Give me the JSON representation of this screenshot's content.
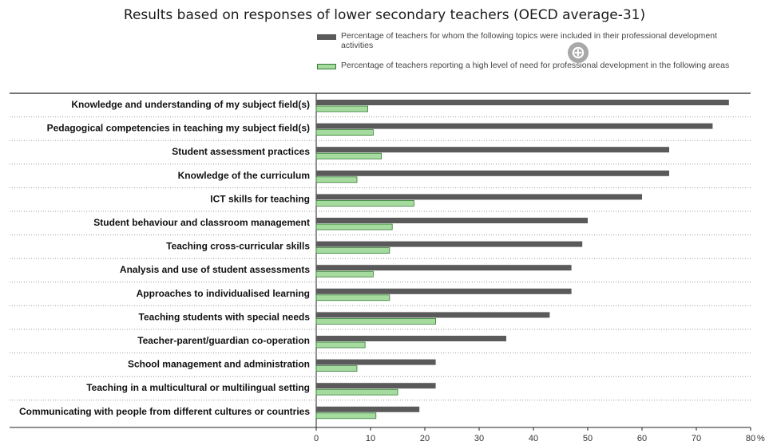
{
  "title": "Results based on responses of lower secondary teachers (OECD average-31)",
  "legend": [
    {
      "label": "Percentage of teachers for whom the following topics were included in their professional development activities",
      "color": "#5a5a5a"
    },
    {
      "label": "Percentage of teachers reporting a high level of need for professional development in the following areas",
      "color": "#a6dba0"
    }
  ],
  "zoom_icon": "zoom-in-icon",
  "chart_data": {
    "type": "bar",
    "orientation": "horizontal",
    "categories": [
      "Knowledge and understanding of my subject field(s)",
      "Pedagogical competencies in teaching my subject field(s)",
      "Student assessment practices",
      "Knowledge of the curriculum",
      "ICT skills for teaching",
      "Student behaviour and classroom management",
      "Teaching cross-curricular skills",
      "Analysis and use of student assessments",
      "Approaches to individualised learning",
      "Teaching students with special needs",
      "Teacher-parent/guardian co-operation",
      "School management and administration",
      "Teaching in a multicultural or multilingual setting",
      "Communicating with people from different cultures or countries"
    ],
    "series": [
      {
        "name": "Percentage of teachers for whom the following topics were included in their professional development activities",
        "color": "#5a5a5a",
        "values": [
          76,
          73,
          65,
          65,
          60,
          50,
          49,
          47,
          47,
          43,
          35,
          22,
          22,
          19
        ]
      },
      {
        "name": "Percentage of teachers reporting a high level of need for professional development in the following areas",
        "color": "#a6dba0",
        "values": [
          9.5,
          10.5,
          12,
          7.5,
          18,
          14,
          13.5,
          10.5,
          13.5,
          22,
          9,
          7.5,
          15,
          11
        ]
      }
    ],
    "xlim": [
      0,
      80
    ],
    "xticks": [
      "0",
      "10",
      "20",
      "30",
      "40",
      "50",
      "60",
      "70",
      "80"
    ],
    "xunit": "%",
    "grid": "dotted row separators",
    "legend_position": "top"
  }
}
